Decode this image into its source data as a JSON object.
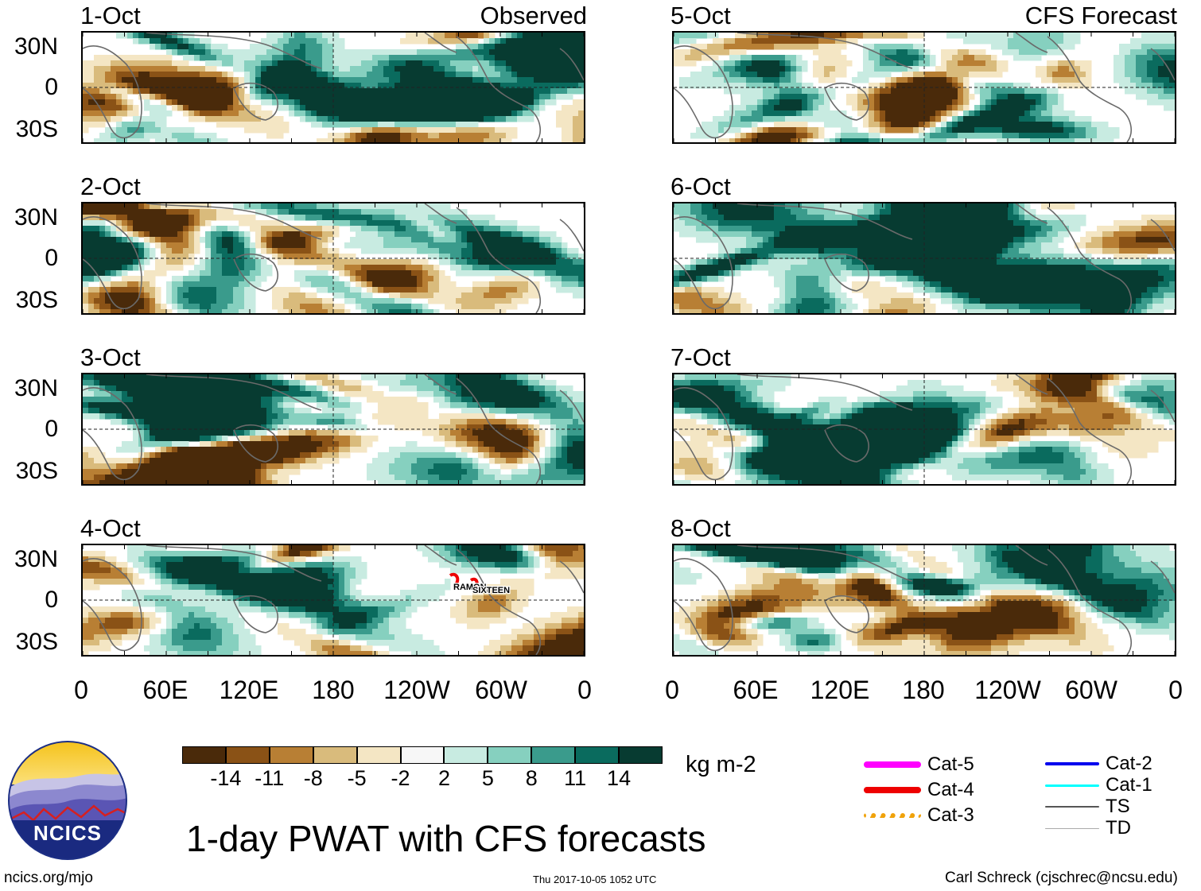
{
  "headers": {
    "observed": "Observed",
    "forecast": "CFS Forecast"
  },
  "chart_data": {
    "type": "heatmap",
    "title": "1-day PWAT with CFS forecasts",
    "variable": "PWAT anomaly",
    "units": "kg m-2",
    "lat_ticks": [
      "30N",
      "0",
      "30S"
    ],
    "lon_ticks": [
      "0",
      "60E",
      "120E",
      "180",
      "120W",
      "60W",
      "0"
    ],
    "panels": [
      {
        "date": "1-Oct",
        "kind": "Observed"
      },
      {
        "date": "2-Oct",
        "kind": "Observed"
      },
      {
        "date": "3-Oct",
        "kind": "Observed"
      },
      {
        "date": "4-Oct",
        "kind": "Observed",
        "storms": [
          "RAMON",
          "SIXTEEN"
        ]
      },
      {
        "date": "5-Oct",
        "kind": "CFS Forecast"
      },
      {
        "date": "6-Oct",
        "kind": "CFS Forecast"
      },
      {
        "date": "7-Oct",
        "kind": "CFS Forecast"
      },
      {
        "date": "8-Oct",
        "kind": "CFS Forecast"
      }
    ],
    "colorbar": {
      "labels": [
        "-14",
        "-11",
        "-8",
        "-5",
        "-2",
        "2",
        "5",
        "8",
        "11",
        "14"
      ],
      "colors": [
        "#4a2a0a",
        "#8a5216",
        "#b87f34",
        "#d9bb7c",
        "#f4e6c4",
        "#f7f7f7",
        "#c8ebe1",
        "#86d0bf",
        "#3a9b8c",
        "#0a6b5e",
        "#073b31"
      ]
    },
    "track_legend": [
      {
        "label": "Cat-5",
        "color": "#ff00ff"
      },
      {
        "label": "Cat-4",
        "color": "#ee0000"
      },
      {
        "label": "Cat-3",
        "color": "#f0a20a"
      },
      {
        "label": "Cat-2",
        "color": "#0000ee"
      },
      {
        "label": "Cat-1",
        "color": "#00ffff"
      },
      {
        "label": "TS",
        "color": "#555555"
      },
      {
        "label": "TD",
        "color": "#aaaaaa"
      }
    ]
  },
  "logo": {
    "text": "NCICS"
  },
  "footer": {
    "left": "ncics.org/mjo",
    "center": "Thu 2017-10-05 1052 UTC",
    "right": "Carl Schreck (cjschrec@ncsu.edu)"
  }
}
